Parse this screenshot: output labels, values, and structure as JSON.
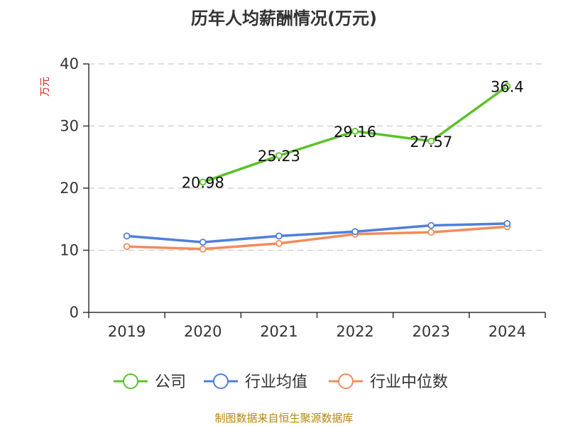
{
  "chart_data": {
    "type": "line",
    "title": "历年人均薪酬情况(万元)",
    "ylabel": "万元",
    "xlabel": "",
    "categories": [
      "2019",
      "2020",
      "2021",
      "2022",
      "2023",
      "2024"
    ],
    "ylim": [
      0,
      40
    ],
    "yticks": [
      0,
      10,
      20,
      30,
      40
    ],
    "grid": true,
    "legend_position": "bottom",
    "series": [
      {
        "name": "公司",
        "color": "#5cc12a",
        "values": [
          null,
          20.98,
          25.23,
          29.16,
          27.57,
          36.4
        ],
        "labels": [
          "",
          "20.98",
          "25.23",
          "29.16",
          "27.57",
          "36.4"
        ]
      },
      {
        "name": "行业均值",
        "color": "#4f7fdc",
        "values": [
          12.3,
          11.3,
          12.3,
          13.0,
          14.0,
          14.3
        ],
        "labels": [
          "",
          "",
          "",
          "",
          "",
          ""
        ]
      },
      {
        "name": "行业中位数",
        "color": "#f28c5a",
        "values": [
          10.6,
          10.2,
          11.1,
          12.6,
          12.9,
          13.8
        ],
        "labels": [
          "",
          "",
          "",
          "",
          "",
          ""
        ]
      }
    ],
    "source": "制图数据来自恒生聚源数据库"
  }
}
